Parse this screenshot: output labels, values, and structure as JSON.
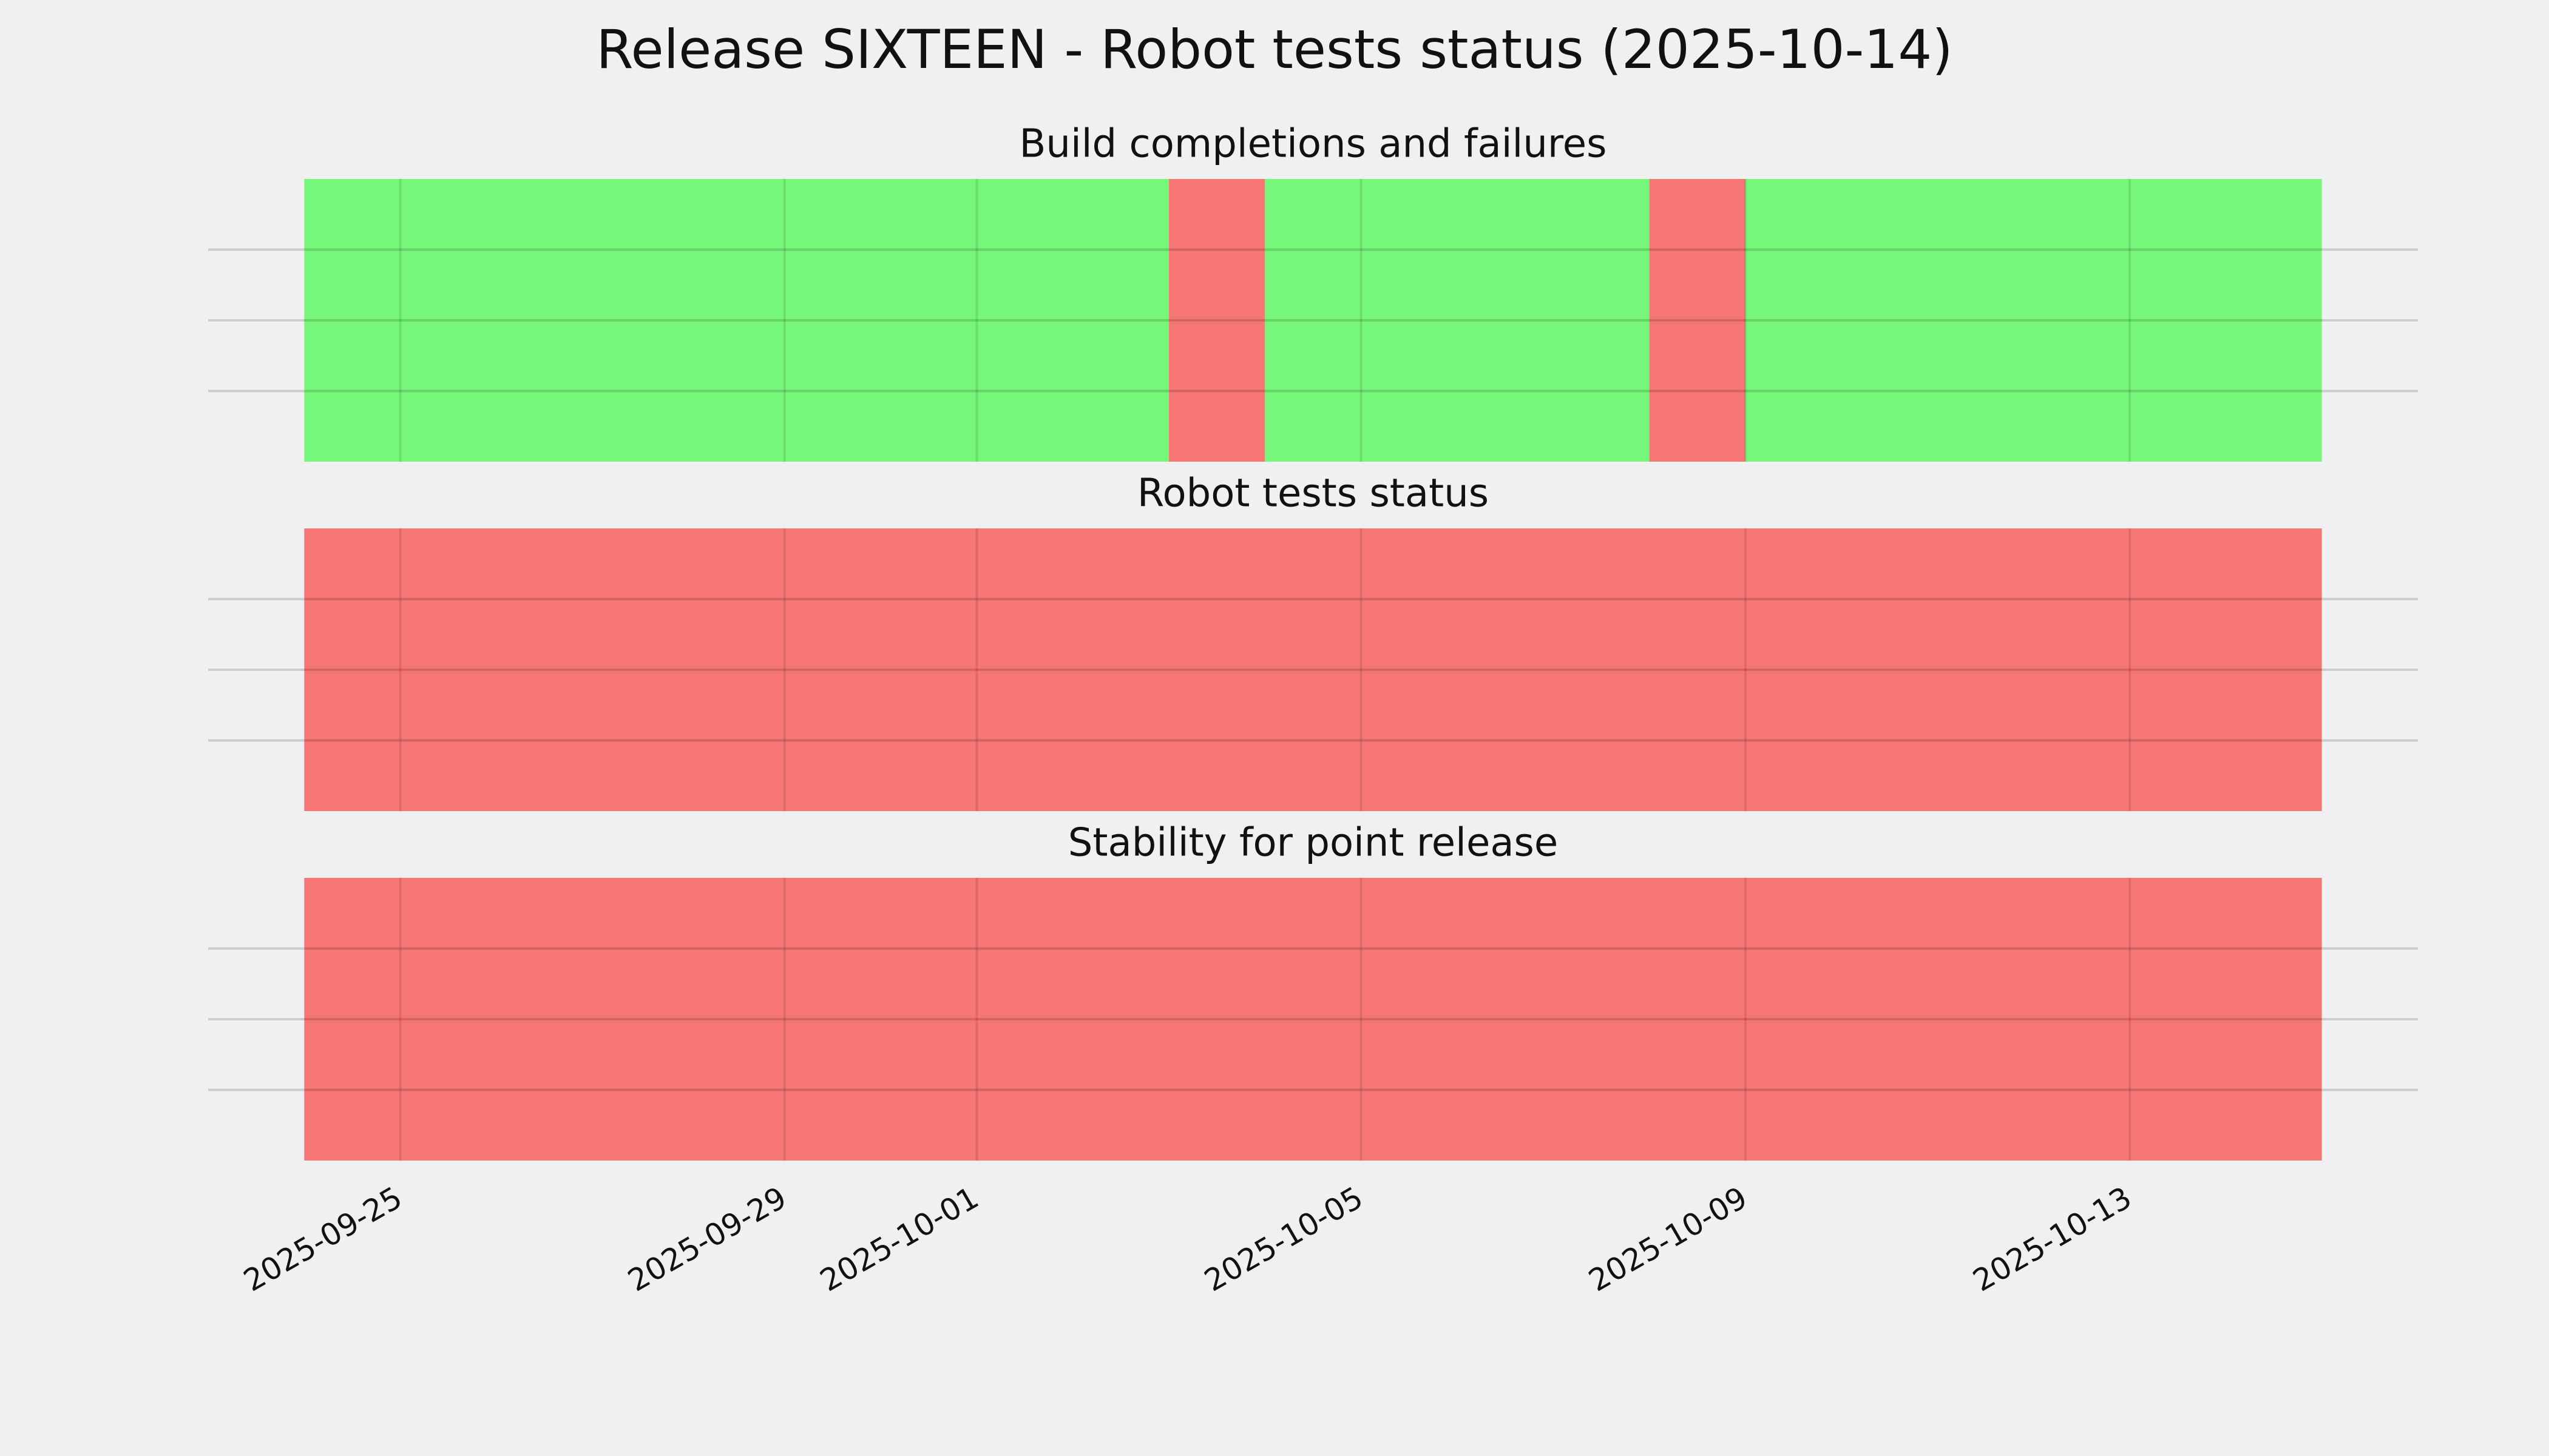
{
  "title": "Release SIXTEEN - Robot tests status (2025-10-14)",
  "chart_data": [
    {
      "type": "timeline",
      "title": "Build completions and failures",
      "spans": [
        {
          "start": "2025-09-24",
          "end": "2025-10-03",
          "color": "#77f77a"
        },
        {
          "start": "2025-10-03",
          "end": "2025-10-04",
          "color": "#f77775"
        },
        {
          "start": "2025-10-04",
          "end": "2025-10-08",
          "color": "#77f77a"
        },
        {
          "start": "2025-10-08",
          "end": "2025-10-09",
          "color": "#f77775"
        },
        {
          "start": "2025-10-09",
          "end": "2025-10-15",
          "color": "#77f77a"
        }
      ],
      "xlim": [
        "2025-09-23",
        "2025-10-16"
      ],
      "xticks": [
        "2025-09-25",
        "2025-09-29",
        "2025-10-01",
        "2025-10-05",
        "2025-10-09",
        "2025-10-13"
      ],
      "ylim": [
        0,
        1
      ],
      "yticks": [
        0.25,
        0.5,
        0.75
      ],
      "grid": true
    },
    {
      "type": "timeline",
      "title": "Robot tests status",
      "spans": [
        {
          "start": "2025-09-24",
          "end": "2025-10-15",
          "color": "#f77775"
        }
      ],
      "xlim": [
        "2025-09-23",
        "2025-10-16"
      ],
      "xticks": [
        "2025-09-25",
        "2025-09-29",
        "2025-10-01",
        "2025-10-05",
        "2025-10-09",
        "2025-10-13"
      ],
      "ylim": [
        0,
        1
      ],
      "yticks": [
        0.25,
        0.5,
        0.75
      ],
      "grid": true
    },
    {
      "type": "timeline",
      "title": "Stability for point release",
      "spans": [
        {
          "start": "2025-09-24",
          "end": "2025-10-15",
          "color": "#f77775"
        }
      ],
      "xlim": [
        "2025-09-23",
        "2025-10-16"
      ],
      "xticks": [
        "2025-09-25",
        "2025-09-29",
        "2025-10-01",
        "2025-10-05",
        "2025-10-09",
        "2025-10-13"
      ],
      "ylim": [
        0,
        1
      ],
      "yticks": [
        0.25,
        0.5,
        0.75
      ],
      "grid": true
    }
  ]
}
